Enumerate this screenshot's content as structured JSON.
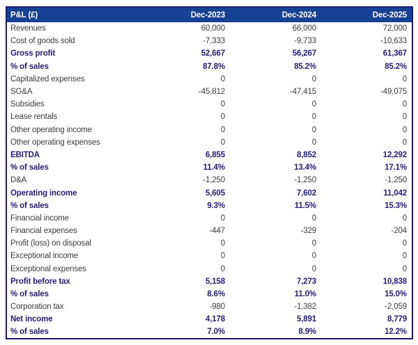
{
  "colors": {
    "header_bg": "#164194",
    "header_text": "#ffffff",
    "table_border": "#1d1a74",
    "emphasis_text": "#221d7d",
    "regular_text": "#3c3c3c",
    "row_bg": "#ffffff"
  },
  "chart_data": {
    "type": "table",
    "title": "P&L (£)",
    "corner_label": "P&L (£)",
    "columns": [
      "Dec-2023",
      "Dec-2024",
      "Dec-2025"
    ],
    "rows": [
      {
        "label": "Revenues",
        "values": [
          "60,000",
          "66,000",
          "72,000"
        ],
        "emphasis": false
      },
      {
        "label": "Cost of goods sold",
        "values": [
          "-7,333",
          "-9,733",
          "-10,633"
        ],
        "emphasis": false
      },
      {
        "label": "Gross profit",
        "values": [
          "52,667",
          "56,267",
          "61,367"
        ],
        "emphasis": true
      },
      {
        "label": "% of sales",
        "values": [
          "87.8%",
          "85.2%",
          "85.2%"
        ],
        "emphasis": true
      },
      {
        "label": "Capitalized expenses",
        "values": [
          "0",
          "0",
          "0"
        ],
        "emphasis": false
      },
      {
        "label": "SG&A",
        "values": [
          "-45,812",
          "-47,415",
          "-49,075"
        ],
        "emphasis": false
      },
      {
        "label": "Subsidies",
        "values": [
          "0",
          "0",
          "0"
        ],
        "emphasis": false
      },
      {
        "label": "Lease rentals",
        "values": [
          "0",
          "0",
          "0"
        ],
        "emphasis": false
      },
      {
        "label": "Other operating income",
        "values": [
          "0",
          "0",
          "0"
        ],
        "emphasis": false
      },
      {
        "label": "Other operating expenses",
        "values": [
          "0",
          "0",
          "0"
        ],
        "emphasis": false
      },
      {
        "label": "EBITDA",
        "values": [
          "6,855",
          "8,852",
          "12,292"
        ],
        "emphasis": true
      },
      {
        "label": "% of sales",
        "values": [
          "11.4%",
          "13.4%",
          "17.1%"
        ],
        "emphasis": true
      },
      {
        "label": "D&A",
        "values": [
          "-1,250",
          "-1,250",
          "-1,250"
        ],
        "emphasis": false
      },
      {
        "label": "Operating income",
        "values": [
          "5,605",
          "7,602",
          "11,042"
        ],
        "emphasis": true
      },
      {
        "label": "% of sales",
        "values": [
          "9.3%",
          "11.5%",
          "15.3%"
        ],
        "emphasis": true
      },
      {
        "label": "Financial income",
        "values": [
          "0",
          "0",
          "0"
        ],
        "emphasis": false
      },
      {
        "label": "Financial expenses",
        "values": [
          "-447",
          "-329",
          "-204"
        ],
        "emphasis": false
      },
      {
        "label": "Profit (loss) on disposal",
        "values": [
          "0",
          "0",
          "0"
        ],
        "emphasis": false
      },
      {
        "label": "Exceptional income",
        "values": [
          "0",
          "0",
          "0"
        ],
        "emphasis": false
      },
      {
        "label": "Exceptional expenses",
        "values": [
          "0",
          "0",
          "0"
        ],
        "emphasis": false
      },
      {
        "label": "Profit before tax",
        "values": [
          "5,158",
          "7,273",
          "10,838"
        ],
        "emphasis": true
      },
      {
        "label": "% of sales",
        "values": [
          "8.6%",
          "11.0%",
          "15.0%"
        ],
        "emphasis": true
      },
      {
        "label": "Corporation tax",
        "values": [
          "-980",
          "-1,382",
          "-2,059"
        ],
        "emphasis": false
      },
      {
        "label": "Net income",
        "values": [
          "4,178",
          "5,891",
          "8,779"
        ],
        "emphasis": true
      },
      {
        "label": "% of sales",
        "values": [
          "7.0%",
          "8.9%",
          "12.2%"
        ],
        "emphasis": true
      }
    ]
  }
}
